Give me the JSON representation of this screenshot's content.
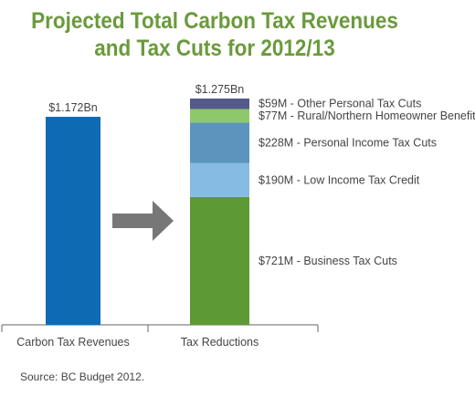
{
  "chart_data": {
    "type": "bar",
    "title": [
      "Projected Total Carbon Tax Revenues",
      "and Tax Cuts for 2012/13"
    ],
    "categories": [
      "Carbon Tax Revenues",
      "Tax Reductions"
    ],
    "unit": "$M",
    "revenues": {
      "value": 1172,
      "label": "$1.172Bn",
      "color": "#0f6ab4"
    },
    "reductions": {
      "total": 1275,
      "total_label": "$1.275Bn",
      "segments": [
        {
          "name": "Business Tax Cuts",
          "value": 721,
          "label": "$721M - Business Tax Cuts",
          "color": "#5d9a34"
        },
        {
          "name": "Low Income Tax Credit",
          "value": 190,
          "label": "$190M - Low Income Tax Credit",
          "color": "#86bbe3"
        },
        {
          "name": "Personal Income Tax Cuts",
          "value": 228,
          "label": "$228M - Personal Income Tax Cuts",
          "color": "#5b95be"
        },
        {
          "name": "Rural/Northern Homeowner Benefit",
          "value": 77,
          "label": "$77M - Rural/Northern Homeowner Benefit",
          "color": "#8dc96a"
        },
        {
          "name": "Other Personal Tax Cuts",
          "value": 59,
          "label": "$59M - Other Personal Tax Cuts",
          "color": "#555a8a"
        }
      ]
    },
    "arrow_color": "#777777",
    "grid": false,
    "legend": "none"
  },
  "source": "Source: BC Budget 2012."
}
